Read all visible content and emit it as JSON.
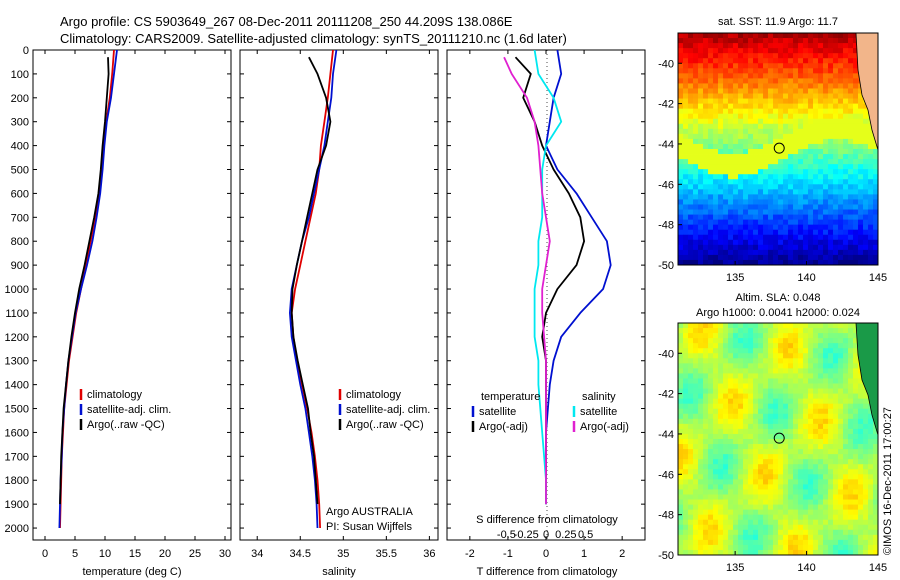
{
  "header": {
    "line1": "Argo profile: CS 5903649_267 08-Dec-2011 20111208_250 44.209S 138.086E",
    "line2": "Climatology: CARS2009. Satellite-adjusted climatology: synTS_20111210.nc (1.6d later)"
  },
  "colors": {
    "climatology": "#e00000",
    "satellite": "#0010d0",
    "argo": "#000000",
    "sal_satellite": "#00e8f0",
    "sal_argo": "#e020d0"
  },
  "chart_data": [
    {
      "type": "line",
      "name": "temperature-profile",
      "xlabel": "temperature (deg C)",
      "ylabel": "",
      "xlim": [
        -2,
        31
      ],
      "ylim": [
        2050,
        0
      ],
      "xticks": [
        0,
        5,
        10,
        15,
        20,
        25,
        30
      ],
      "yticks": [
        0,
        100,
        200,
        300,
        400,
        500,
        600,
        700,
        800,
        900,
        1000,
        1100,
        1200,
        1300,
        1400,
        1500,
        1600,
        1700,
        1800,
        1900,
        2000
      ],
      "legend": [
        "climatology",
        "satellite-adj. clim.",
        "Argo(..raw -QC)"
      ],
      "series": [
        {
          "name": "climatology",
          "color": "#e00000",
          "x": [
            11.5,
            11.2,
            10.8,
            10.2,
            9.8,
            9.5,
            9.0,
            8.4,
            7.6,
            6.8,
            6.0,
            5.2,
            4.6,
            4.0,
            3.6,
            3.2,
            3.0,
            2.8,
            2.7,
            2.6,
            2.5
          ],
          "y": [
            0,
            100,
            200,
            300,
            400,
            500,
            600,
            700,
            800,
            900,
            1000,
            1100,
            1200,
            1300,
            1400,
            1500,
            1600,
            1700,
            1800,
            1900,
            2000
          ]
        },
        {
          "name": "satellite-adj. clim.",
          "color": "#0010d0",
          "x": [
            12.0,
            11.5,
            11.0,
            10.3,
            9.9,
            9.6,
            9.2,
            8.6,
            7.9,
            7.0,
            6.0,
            5.1,
            4.5,
            3.9,
            3.5,
            3.2,
            2.9,
            2.8,
            2.6,
            2.5,
            2.4
          ],
          "y": [
            0,
            100,
            200,
            300,
            400,
            500,
            600,
            700,
            800,
            900,
            1000,
            1100,
            1200,
            1300,
            1400,
            1500,
            1600,
            1700,
            1800,
            1900,
            2000
          ]
        },
        {
          "name": "Argo(..raw -QC)",
          "color": "#000000",
          "x": [
            10.5,
            10.6,
            10.3,
            10.0,
            9.6,
            9.3,
            8.9,
            8.2,
            7.4,
            6.6,
            5.7,
            5.0,
            4.4,
            3.9,
            3.5,
            3.1,
            2.9,
            2.7,
            2.6,
            2.5
          ],
          "y": [
            30,
            100,
            200,
            300,
            400,
            500,
            600,
            700,
            800,
            900,
            1000,
            1100,
            1200,
            1300,
            1400,
            1500,
            1600,
            1700,
            1800,
            1900
          ]
        }
      ]
    },
    {
      "type": "line",
      "name": "salinity-profile",
      "xlabel": "salinity",
      "ylabel": "",
      "xlim": [
        33.8,
        36.1
      ],
      "ylim": [
        2050,
        0
      ],
      "xticks": [
        34,
        34.5,
        35,
        35.5,
        36
      ],
      "xticklabels": [
        "34",
        "34.5",
        "35",
        "35.5",
        "36"
      ],
      "legend": [
        "climatology",
        "satellite-adj. clim.",
        "Argo(..raw -QC)"
      ],
      "annotation": [
        "Argo AUSTRALIA",
        "PI: Susan Wijffels"
      ],
      "series": [
        {
          "name": "climatology",
          "color": "#e00000",
          "x": [
            34.88,
            34.85,
            34.82,
            34.78,
            34.74,
            34.72,
            34.68,
            34.62,
            34.56,
            34.5,
            34.44,
            34.4,
            34.42,
            34.46,
            34.52,
            34.58,
            34.63,
            34.67,
            34.7,
            34.72,
            34.73
          ],
          "y": [
            0,
            100,
            200,
            300,
            400,
            500,
            600,
            700,
            800,
            900,
            1000,
            1100,
            1200,
            1300,
            1400,
            1500,
            1600,
            1700,
            1800,
            1900,
            2000
          ]
        },
        {
          "name": "satellite-adj. clim.",
          "color": "#0010d0",
          "x": [
            34.92,
            34.88,
            34.86,
            34.82,
            34.78,
            34.72,
            34.66,
            34.6,
            34.52,
            34.46,
            34.4,
            34.38,
            34.4,
            34.45,
            34.5,
            34.56,
            34.6,
            34.64,
            34.67,
            34.69,
            34.7
          ],
          "y": [
            0,
            100,
            200,
            300,
            400,
            500,
            600,
            700,
            800,
            900,
            1000,
            1100,
            1200,
            1300,
            1400,
            1500,
            1600,
            1700,
            1800,
            1900,
            2000
          ]
        },
        {
          "name": "Argo(..raw -QC)",
          "color": "#000000",
          "x": [
            34.6,
            34.7,
            34.8,
            34.85,
            34.8,
            34.7,
            34.64,
            34.58,
            34.52,
            34.46,
            34.41,
            34.4,
            34.42,
            34.47,
            34.53,
            34.59,
            34.62,
            34.66,
            34.68,
            34.7
          ],
          "y": [
            30,
            100,
            200,
            300,
            400,
            500,
            600,
            700,
            800,
            900,
            1000,
            1100,
            1200,
            1300,
            1400,
            1500,
            1600,
            1700,
            1800,
            1900
          ]
        }
      ]
    },
    {
      "type": "line",
      "name": "difference-profile",
      "xlabel": "T difference from climatology",
      "x2label": "S difference from climatology",
      "xlim": [
        -2.6,
        2.6
      ],
      "ylim": [
        2050,
        0
      ],
      "xticks": [
        -2,
        -1,
        0,
        1,
        2
      ],
      "x2ticks": [
        -0.5,
        -0.25,
        0,
        0.25,
        0.5
      ],
      "x2ticklabels": [
        "-0.5",
        "-0.25",
        "0",
        "0.25",
        "0.5"
      ],
      "legend_titles": [
        "temperature",
        "salinity"
      ],
      "legend": [
        "satellite",
        "Argo(-adj)",
        "satellite",
        "Argo(-adj)"
      ],
      "series": [
        {
          "name": "temperature satellite",
          "color": "#0010d0",
          "x": [
            0.3,
            0.4,
            0.2,
            0.1,
            0.0,
            0.3,
            0.8,
            1.2,
            1.6,
            1.7,
            1.5,
            0.9,
            0.4,
            0.2,
            0.1,
            0.05,
            0.0,
            0.0,
            0.0,
            0.0
          ],
          "y": [
            0,
            100,
            200,
            300,
            400,
            500,
            600,
            700,
            800,
            900,
            1000,
            1100,
            1200,
            1300,
            1400,
            1500,
            1600,
            1700,
            1800,
            1900
          ]
        },
        {
          "name": "temperature Argo(-adj)",
          "color": "#000000",
          "x": [
            -0.8,
            -0.4,
            -0.6,
            -0.3,
            -0.1,
            0.2,
            0.6,
            0.9,
            1.0,
            0.8,
            0.3,
            0.0,
            -0.1,
            0.0,
            0.0,
            0.0,
            0.0,
            0.0,
            0.0,
            0.0
          ],
          "y": [
            30,
            100,
            200,
            300,
            400,
            500,
            600,
            700,
            800,
            900,
            1000,
            1100,
            1200,
            1300,
            1400,
            1500,
            1600,
            1700,
            1800,
            1900
          ]
        },
        {
          "name": "salinity satellite",
          "color": "#00e8f0",
          "x": [
            -0.3,
            -0.2,
            0.2,
            0.4,
            0.0,
            -0.1,
            -0.1,
            -0.1,
            -0.2,
            -0.2,
            -0.3,
            -0.3,
            -0.3,
            -0.2,
            -0.2,
            -0.15,
            -0.1,
            -0.05,
            0.0,
            0.0
          ],
          "y": [
            0,
            100,
            200,
            300,
            400,
            500,
            600,
            700,
            800,
            900,
            1000,
            1100,
            1200,
            1300,
            1400,
            1500,
            1600,
            1700,
            1800,
            1900
          ]
        },
        {
          "name": "salinity Argo(-adj)",
          "color": "#e020d0",
          "x": [
            -1.1,
            -0.9,
            -0.5,
            -0.3,
            -0.2,
            -0.15,
            -0.1,
            0.0,
            0.1,
            0.0,
            -0.1,
            -0.1,
            -0.05,
            0.0,
            0.0,
            0.0,
            0.0,
            0.0,
            0.0,
            0.0
          ],
          "y": [
            30,
            100,
            200,
            300,
            400,
            500,
            600,
            700,
            800,
            900,
            1000,
            1100,
            1200,
            1300,
            1400,
            1500,
            1600,
            1700,
            1800,
            1900
          ]
        }
      ]
    },
    {
      "type": "heatmap",
      "name": "sst-map",
      "title": "sat. SST: 11.9 Argo: 11.7",
      "xlim": [
        131,
        145
      ],
      "ylim": [
        -50,
        -38.5
      ],
      "xticks": [
        135,
        140,
        145
      ],
      "yticks": [
        -40,
        -42,
        -44,
        -46,
        -48,
        -50
      ],
      "marker": {
        "lon": 138.086,
        "lat": -44.209
      }
    },
    {
      "type": "heatmap",
      "name": "sla-map",
      "title_line1": "Altim. SLA: 0.048",
      "title_line2": "Argo h1000: 0.0041 h2000: 0.024",
      "xlim": [
        131,
        145
      ],
      "ylim": [
        -50,
        -38.5
      ],
      "xticks": [
        135,
        140,
        145
      ],
      "yticks": [
        -40,
        -42,
        -44,
        -46,
        -48,
        -50
      ],
      "marker": {
        "lon": 138.086,
        "lat": -44.209
      }
    }
  ],
  "footer": {
    "stamp": "©IMOS 16-Dec-2011 17:00:27"
  }
}
